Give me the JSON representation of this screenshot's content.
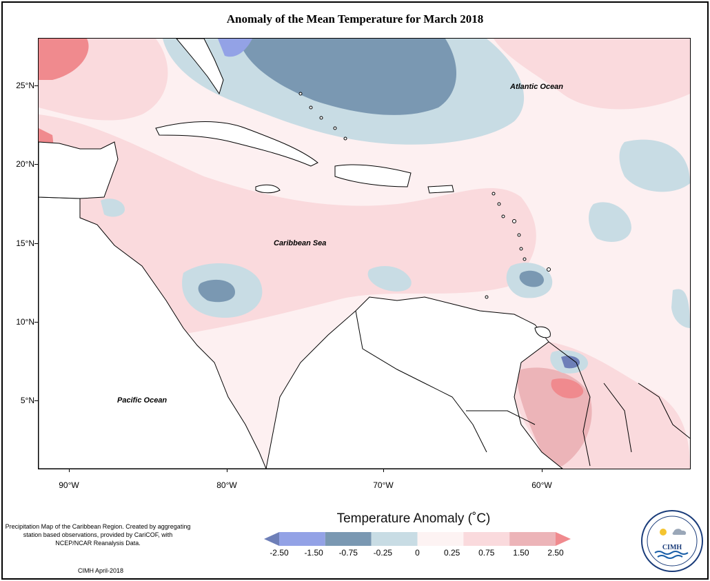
{
  "title": "Anomaly of the Mean Temperature for March 2018",
  "map": {
    "lat_labels": [
      "25°N",
      "20°N",
      "15°N",
      "10°N",
      "5°N"
    ],
    "lon_labels": [
      "90°W",
      "80°W",
      "70°W",
      "60°W"
    ],
    "ocean_labels": {
      "atlantic": "Atlantic Ocean",
      "caribbean": "Caribbean Sea",
      "pacific": "Pacific Ocean"
    }
  },
  "footer": {
    "description": "Precipitation Map of the Caribbean Region. Created by aggregating station based observations, provided by CariCOF, with NCEP/NCAR Reanalysis Data.",
    "credit": "CIMH April-2018"
  },
  "legend": {
    "title": "Temperature Anomaly (˚C)",
    "labels": [
      "-2.50",
      "-1.50",
      "-0.75",
      "-0.25",
      "0",
      "0.25",
      "0.75",
      "1.50",
      "2.50"
    ],
    "colors": [
      "#6e7fb8",
      "#93a2e6",
      "#7a98b2",
      "#c8dce4",
      "#fdf3f3",
      "#fadadd",
      "#ecb4b8",
      "#f08a8e"
    ]
  },
  "logo": {
    "abbr": "CIMH"
  }
}
